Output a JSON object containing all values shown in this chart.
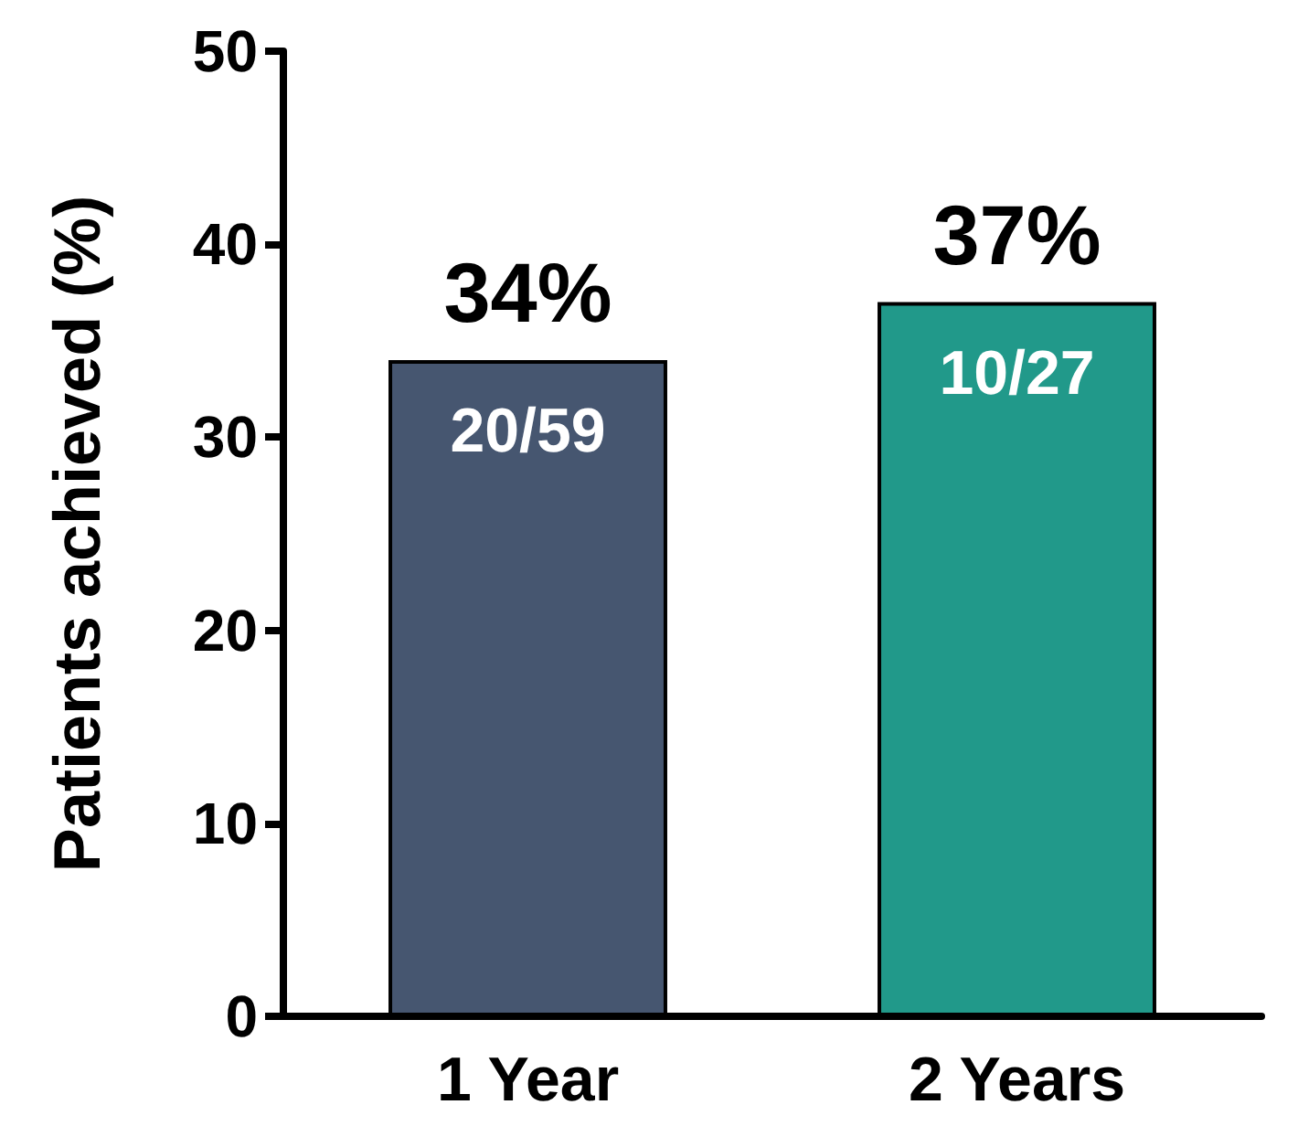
{
  "chart_data": {
    "type": "bar",
    "ylabel": "Patients achieved (%)",
    "categories": [
      "1 Year",
      "2 Years"
    ],
    "values": [
      34,
      37
    ],
    "colors": [
      "#465670",
      "#21998a"
    ],
    "value_labels": [
      "34%",
      "37%"
    ],
    "annotations": [
      "20/59",
      "10/27"
    ],
    "ylim": [
      0,
      50
    ],
    "yticks": [
      0,
      10,
      20,
      30,
      40,
      50
    ],
    "grid": false
  }
}
